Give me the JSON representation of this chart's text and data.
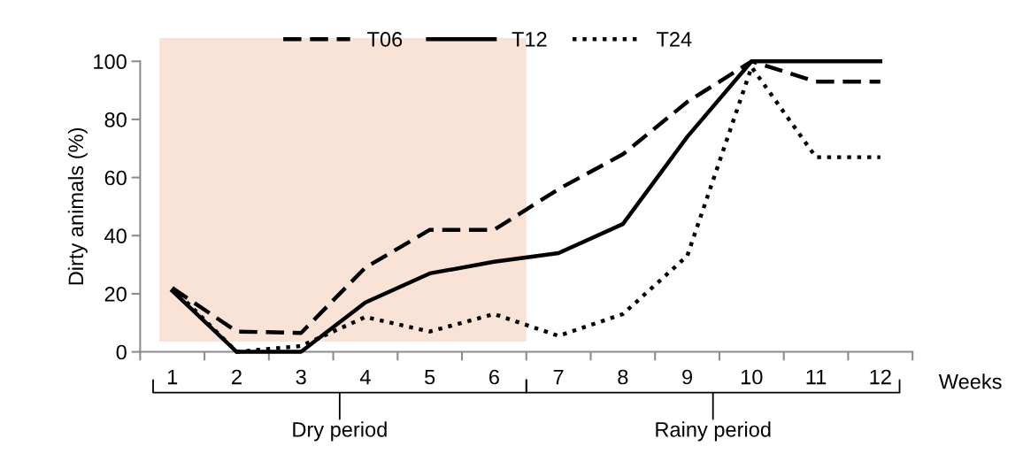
{
  "chart_data": {
    "type": "line",
    "xlabel": "Weeks",
    "ylabel": "Dirty animals (%)",
    "x": [
      1,
      2,
      3,
      4,
      5,
      6,
      7,
      8,
      9,
      10,
      11,
      12
    ],
    "xlim": [
      0.5,
      12.5
    ],
    "xticks": [
      1,
      2,
      3,
      4,
      5,
      6,
      7,
      8,
      9,
      10,
      11,
      12
    ],
    "ylim": [
      0,
      100
    ],
    "yticks": [
      0,
      20,
      40,
      60,
      80,
      100
    ],
    "series": [
      {
        "name": "T06",
        "color": "#000000",
        "line_style": "dashed",
        "values": [
          22,
          7,
          6.5,
          29,
          42,
          42,
          56,
          68,
          86,
          100,
          93,
          93
        ]
      },
      {
        "name": "T12",
        "color": "#000000",
        "line_style": "solid",
        "values": [
          21,
          0,
          0,
          17,
          27,
          31,
          34,
          44,
          74,
          100,
          100,
          100
        ]
      },
      {
        "name": "T24",
        "color": "#000000",
        "line_style": "dotted",
        "values": [
          22,
          0,
          2,
          12,
          7,
          13,
          5.5,
          13,
          33,
          98,
          67,
          67
        ]
      }
    ],
    "bands": [
      {
        "axis": "x",
        "from": 0.8,
        "to": 6.5,
        "color": "#f9e3d6"
      }
    ],
    "annotations": [
      "Dry period",
      "Rainy period"
    ],
    "legend": "top",
    "grid": false,
    "marker": "none"
  }
}
